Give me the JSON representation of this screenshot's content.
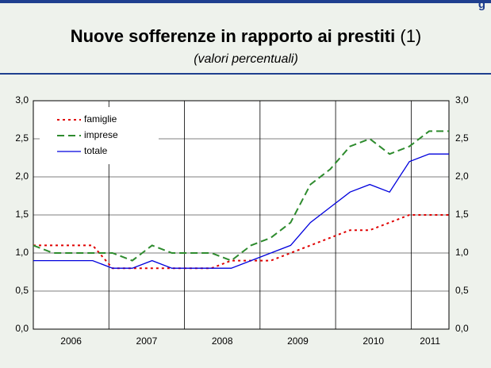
{
  "chart_data": {
    "type": "line",
    "corner_text": "g",
    "title": "Nuove sofferenze in rapporto ai prestiti",
    "title_note": "(1)",
    "subtitle": "(valori percentuali)",
    "categories": [
      null,
      null,
      null,
      null,
      null,
      null,
      null,
      null,
      null,
      null,
      null,
      null,
      null,
      null,
      null,
      null,
      null,
      null,
      null,
      null,
      null,
      null
    ],
    "year_labels": [
      "2006",
      "2007",
      "2008",
      "2009",
      "2010",
      "2011"
    ],
    "series": [
      {
        "name": "famiglie",
        "color": "#e00000",
        "style": "dotted",
        "values": [
          1.1,
          1.1,
          1.1,
          1.1,
          0.8,
          0.8,
          0.8,
          0.8,
          0.8,
          0.8,
          0.9,
          0.9,
          0.9,
          1.0,
          1.1,
          1.2,
          1.3,
          1.3,
          1.4,
          1.5,
          1.5,
          1.5
        ]
      },
      {
        "name": "imprese",
        "color": "#2e8b2e",
        "style": "dashed",
        "values": [
          1.1,
          1.0,
          1.0,
          1.0,
          1.0,
          0.9,
          1.1,
          1.0,
          1.0,
          1.0,
          0.9,
          1.1,
          1.2,
          1.4,
          1.9,
          2.1,
          2.4,
          2.5,
          2.3,
          2.4,
          2.6,
          2.6
        ]
      },
      {
        "name": "totale",
        "color": "#0000dd",
        "style": "solid",
        "values": [
          0.9,
          0.9,
          0.9,
          0.9,
          0.8,
          0.8,
          0.9,
          0.8,
          0.8,
          0.8,
          0.8,
          0.9,
          1.0,
          1.1,
          1.4,
          1.6,
          1.8,
          1.9,
          1.8,
          2.2,
          2.3,
          2.3
        ]
      }
    ],
    "ylim": [
      0,
      3
    ],
    "yticks": [
      {
        "value": 0,
        "label": "0,0"
      },
      {
        "value": 0.5,
        "label": "0,5"
      },
      {
        "value": 1,
        "label": "1,0"
      },
      {
        "value": 1.5,
        "label": "1,5"
      },
      {
        "value": 2,
        "label": "2,0"
      },
      {
        "value": 2.5,
        "label": "2,5"
      },
      {
        "value": 3,
        "label": "3,0"
      }
    ],
    "grid": true,
    "legend": "upper left"
  }
}
